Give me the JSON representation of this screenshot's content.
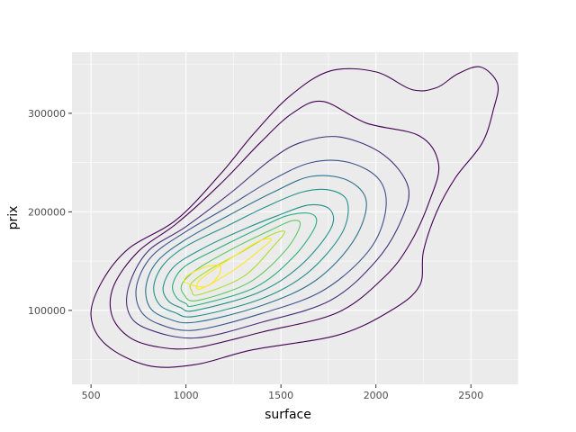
{
  "chart_data": {
    "type": "density_contour",
    "xlabel": "surface",
    "ylabel": "prix",
    "xlim": [
      400,
      2750
    ],
    "ylim": [
      25000,
      362000
    ],
    "x_ticks": [
      500,
      1000,
      1500,
      2000,
      2500
    ],
    "x_tick_labels": [
      "500",
      "1000",
      "1500",
      "2000",
      "2500"
    ],
    "y_ticks": [
      100000,
      200000,
      300000
    ],
    "y_tick_labels": [
      "100000",
      "200000",
      "300000"
    ],
    "grid": true,
    "legend": "none",
    "colors": {
      "panel_background": "#ebebeb",
      "grid_major": "#ffffff",
      "levels": [
        "#440154",
        "#472d7b",
        "#3b528b",
        "#2c728e",
        "#21918c",
        "#28ae80",
        "#5ec962",
        "#addc30",
        "#fde725"
      ]
    },
    "contours": [
      {
        "level": 1,
        "color": "#440154",
        "points": [
          [
            1050,
            45000
          ],
          [
            1350,
            60000
          ],
          [
            1800,
            75000
          ],
          [
            2080,
            100000
          ],
          [
            2230,
            125000
          ],
          [
            2250,
            160000
          ],
          [
            2320,
            200000
          ],
          [
            2420,
            235000
          ],
          [
            2560,
            270000
          ],
          [
            2620,
            305000
          ],
          [
            2640,
            330000
          ],
          [
            2550,
            347000
          ],
          [
            2430,
            340000
          ],
          [
            2320,
            326000
          ],
          [
            2190,
            324000
          ],
          [
            2000,
            342000
          ],
          [
            1760,
            343000
          ],
          [
            1550,
            318000
          ],
          [
            1360,
            280000
          ],
          [
            1180,
            238000
          ],
          [
            950,
            192000
          ],
          [
            700,
            163000
          ],
          [
            560,
            130000
          ],
          [
            500,
            95000
          ],
          [
            580,
            65000
          ],
          [
            800,
            44000
          ]
        ]
      },
      {
        "level": 2,
        "color": "#440154",
        "points": [
          [
            1050,
            62000
          ],
          [
            1400,
            78000
          ],
          [
            1800,
            98000
          ],
          [
            2050,
            135000
          ],
          [
            2180,
            168000
          ],
          [
            2280,
            210000
          ],
          [
            2330,
            248000
          ],
          [
            2230,
            277000
          ],
          [
            1950,
            290000
          ],
          [
            1720,
            312000
          ],
          [
            1560,
            300000
          ],
          [
            1390,
            270000
          ],
          [
            1180,
            228000
          ],
          [
            950,
            188000
          ],
          [
            750,
            160000
          ],
          [
            620,
            125000
          ],
          [
            610,
            95000
          ],
          [
            700,
            73000
          ],
          [
            850,
            63000
          ]
        ]
      },
      {
        "level": 3,
        "color": "#472d7b",
        "points": [
          [
            1050,
            72000
          ],
          [
            1400,
            88000
          ],
          [
            1760,
            110000
          ],
          [
            2000,
            150000
          ],
          [
            2130,
            190000
          ],
          [
            2170,
            225000
          ],
          [
            2040,
            258000
          ],
          [
            1810,
            276000
          ],
          [
            1600,
            270000
          ],
          [
            1440,
            252000
          ],
          [
            1240,
            220000
          ],
          [
            1000,
            185000
          ],
          [
            800,
            160000
          ],
          [
            700,
            125000
          ],
          [
            700,
            97000
          ],
          [
            800,
            81000
          ]
        ]
      },
      {
        "level": 4,
        "color": "#3b528b",
        "points": [
          [
            1050,
            80000
          ],
          [
            1400,
            97000
          ],
          [
            1720,
            120000
          ],
          [
            1960,
            160000
          ],
          [
            2050,
            200000
          ],
          [
            2020,
            232000
          ],
          [
            1860,
            250000
          ],
          [
            1660,
            250000
          ],
          [
            1450,
            232000
          ],
          [
            1220,
            205000
          ],
          [
            1000,
            180000
          ],
          [
            820,
            155000
          ],
          [
            740,
            125000
          ],
          [
            760,
            100000
          ],
          [
            860,
            86000
          ]
        ]
      },
      {
        "level": 5,
        "color": "#2c728e",
        "points": [
          [
            1050,
            88000
          ],
          [
            1400,
            105000
          ],
          [
            1680,
            130000
          ],
          [
            1880,
            170000
          ],
          [
            1950,
            210000
          ],
          [
            1850,
            232000
          ],
          [
            1660,
            236000
          ],
          [
            1460,
            220000
          ],
          [
            1240,
            198000
          ],
          [
            1000,
            172000
          ],
          [
            850,
            150000
          ],
          [
            790,
            125000
          ],
          [
            810,
            103000
          ],
          [
            900,
            92000
          ]
        ]
      },
      {
        "level": 6,
        "color": "#21918c",
        "points": [
          [
            1050,
            94000
          ],
          [
            1400,
            112000
          ],
          [
            1640,
            138000
          ],
          [
            1820,
            178000
          ],
          [
            1850,
            210000
          ],
          [
            1760,
            222000
          ],
          [
            1610,
            220000
          ],
          [
            1420,
            205000
          ],
          [
            1220,
            186000
          ],
          [
            1000,
            165000
          ],
          [
            880,
            146000
          ],
          [
            830,
            124000
          ],
          [
            860,
            106000
          ],
          [
            940,
            98000
          ]
        ]
      },
      {
        "level": 7,
        "color": "#21918c",
        "points": [
          [
            1050,
            100000
          ],
          [
            1380,
            118000
          ],
          [
            1600,
            145000
          ],
          [
            1760,
            182000
          ],
          [
            1760,
            202000
          ],
          [
            1650,
            207000
          ],
          [
            1480,
            196000
          ],
          [
            1300,
            182000
          ],
          [
            1100,
            164000
          ],
          [
            940,
            145000
          ],
          [
            880,
            124000
          ],
          [
            905,
            110000
          ],
          [
            970,
            103000
          ]
        ]
      },
      {
        "level": 8,
        "color": "#28ae80",
        "points": [
          [
            1050,
            105000
          ],
          [
            1360,
            123000
          ],
          [
            1560,
            153000
          ],
          [
            1680,
            185000
          ],
          [
            1660,
            198000
          ],
          [
            1530,
            196000
          ],
          [
            1360,
            181000
          ],
          [
            1160,
            162000
          ],
          [
            990,
            144000
          ],
          [
            930,
            126000
          ],
          [
            950,
            113000
          ],
          [
            1000,
            107000
          ]
        ]
      },
      {
        "level": 9,
        "color": "#5ec962",
        "points": [
          [
            1060,
            110000
          ],
          [
            1330,
            128000
          ],
          [
            1520,
            160000
          ],
          [
            1600,
            186000
          ],
          [
            1560,
            191000
          ],
          [
            1430,
            180000
          ],
          [
            1240,
            162000
          ],
          [
            1060,
            142000
          ],
          [
            980,
            127000
          ],
          [
            990,
            116000
          ]
        ]
      },
      {
        "level": 10,
        "color": "#addc30",
        "points": [
          [
            1070,
            116000
          ],
          [
            1300,
            134000
          ],
          [
            1460,
            165000
          ],
          [
            1520,
            180000
          ],
          [
            1440,
            176000
          ],
          [
            1300,
            160000
          ],
          [
            1130,
            142000
          ],
          [
            1030,
            128000
          ],
          [
            1030,
            120000
          ]
        ]
      },
      {
        "level": 11,
        "color": "#fde725",
        "points": [
          [
            1080,
            122000
          ],
          [
            1260,
            142000
          ],
          [
            1400,
            163000
          ],
          [
            1450,
            172000
          ],
          [
            1380,
            170000
          ],
          [
            1230,
            152000
          ],
          [
            1100,
            135000
          ],
          [
            1060,
            127000
          ]
        ]
      },
      {
        "level": 12,
        "color": "#fde725",
        "points": [
          [
            1000,
            128000
          ],
          [
            1100,
            124000
          ],
          [
            1170,
            135000
          ],
          [
            1180,
            145000
          ],
          [
            1120,
            145000
          ],
          [
            1050,
            140000
          ],
          [
            1000,
            134000
          ]
        ]
      }
    ]
  }
}
